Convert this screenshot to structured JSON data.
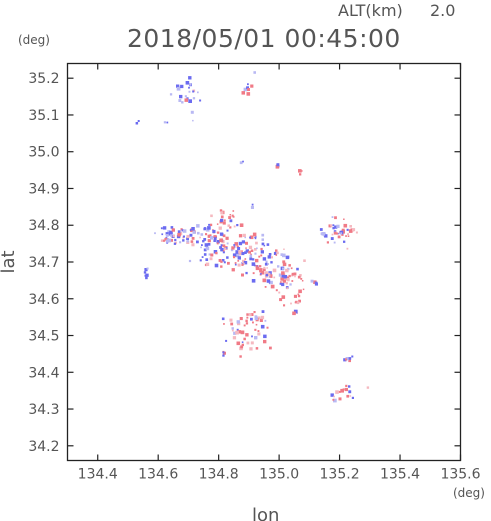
{
  "header": {
    "alt_label": "ALT(km)",
    "alt_value": "2.0",
    "timestamp": "2018/05/01 00:45:00"
  },
  "chart_data": {
    "type": "scatter",
    "title": "2018/05/01 00:45:00",
    "xlabel": "lon",
    "ylabel": "lat",
    "x_unit": "(deg)",
    "y_unit": "(deg)",
    "xlim": [
      134.3,
      135.6
    ],
    "ylim": [
      34.16,
      35.24
    ],
    "x_ticks": [
      {
        "value": 134.4,
        "label": "134.4"
      },
      {
        "value": 134.6,
        "label": "134.6"
      },
      {
        "value": 134.8,
        "label": "134.8"
      },
      {
        "value": 135.0,
        "label": "135.0"
      },
      {
        "value": 135.2,
        "label": "135.2"
      },
      {
        "value": 135.4,
        "label": "135.4"
      },
      {
        "value": 135.6,
        "label": "135.6"
      }
    ],
    "y_ticks": [
      {
        "value": 34.2,
        "label": "34.2"
      },
      {
        "value": 34.3,
        "label": "34.3"
      },
      {
        "value": 34.4,
        "label": "34.4"
      },
      {
        "value": 34.5,
        "label": "34.5"
      },
      {
        "value": 34.6,
        "label": "34.6"
      },
      {
        "value": 34.7,
        "label": "34.7"
      },
      {
        "value": 34.8,
        "label": "34.8"
      },
      {
        "value": 34.9,
        "label": "34.9"
      },
      {
        "value": 35.0,
        "label": "35.0"
      },
      {
        "value": 35.1,
        "label": "35.1"
      },
      {
        "value": 35.2,
        "label": "35.2"
      }
    ],
    "colors": {
      "blue": "#6b6bf0",
      "red": "#f07a86",
      "pale_blue": "#b9b9f3",
      "pale_red": "#f5b9c0",
      "frame": "#222222",
      "text": "#555555"
    },
    "clusters": [
      {
        "lon": 134.7,
        "lat": 35.15,
        "sx": 0.025,
        "sy": 0.03,
        "n": 26,
        "mix": 0.85
      },
      {
        "lon": 134.89,
        "lat": 35.17,
        "sx": 0.01,
        "sy": 0.008,
        "n": 8,
        "mix": 0.3
      },
      {
        "lon": 134.62,
        "lat": 34.77,
        "sx": 0.015,
        "sy": 0.01,
        "n": 12,
        "mix": 0.6
      },
      {
        "lon": 134.66,
        "lat": 34.77,
        "sx": 0.02,
        "sy": 0.012,
        "n": 22,
        "mix": 0.6
      },
      {
        "lon": 134.7,
        "lat": 34.77,
        "sx": 0.025,
        "sy": 0.015,
        "n": 25,
        "mix": 0.55
      },
      {
        "lon": 134.83,
        "lat": 34.82,
        "sx": 0.02,
        "sy": 0.012,
        "n": 16,
        "mix": 0.25
      },
      {
        "lon": 134.8,
        "lat": 34.75,
        "sx": 0.04,
        "sy": 0.035,
        "n": 70,
        "mix": 0.55
      },
      {
        "lon": 134.9,
        "lat": 34.72,
        "sx": 0.045,
        "sy": 0.035,
        "n": 75,
        "mix": 0.5
      },
      {
        "lon": 134.97,
        "lat": 34.67,
        "sx": 0.03,
        "sy": 0.03,
        "n": 45,
        "mix": 0.45
      },
      {
        "lon": 135.03,
        "lat": 34.65,
        "sx": 0.025,
        "sy": 0.035,
        "n": 40,
        "mix": 0.35
      },
      {
        "lon": 135.05,
        "lat": 34.58,
        "sx": 0.012,
        "sy": 0.012,
        "n": 10,
        "mix": 0.3
      },
      {
        "lon": 135.12,
        "lat": 34.64,
        "sx": 0.008,
        "sy": 0.006,
        "n": 4,
        "mix": 0.6
      },
      {
        "lon": 135.16,
        "lat": 34.78,
        "sx": 0.012,
        "sy": 0.01,
        "n": 10,
        "mix": 0.75
      },
      {
        "lon": 135.21,
        "lat": 34.78,
        "sx": 0.025,
        "sy": 0.02,
        "n": 35,
        "mix": 0.25
      },
      {
        "lon": 134.56,
        "lat": 34.67,
        "sx": 0.005,
        "sy": 0.006,
        "n": 6,
        "mix": 0.7
      },
      {
        "lon": 134.89,
        "lat": 34.51,
        "sx": 0.04,
        "sy": 0.025,
        "n": 50,
        "mix": 0.3
      },
      {
        "lon": 134.92,
        "lat": 34.55,
        "sx": 0.015,
        "sy": 0.01,
        "n": 10,
        "mix": 0.3
      },
      {
        "lon": 135.0,
        "lat": 34.96,
        "sx": 0.006,
        "sy": 0.004,
        "n": 4,
        "mix": 0.8
      },
      {
        "lon": 135.07,
        "lat": 34.95,
        "sx": 0.008,
        "sy": 0.005,
        "n": 4,
        "mix": 0.2
      },
      {
        "lon": 134.88,
        "lat": 34.97,
        "sx": 0.004,
        "sy": 0.003,
        "n": 2,
        "mix": 0.9
      },
      {
        "lon": 134.82,
        "lat": 34.45,
        "sx": 0.006,
        "sy": 0.005,
        "n": 4,
        "mix": 0.6
      },
      {
        "lon": 135.23,
        "lat": 34.44,
        "sx": 0.006,
        "sy": 0.005,
        "n": 6,
        "mix": 0.4
      },
      {
        "lon": 135.21,
        "lat": 34.34,
        "sx": 0.014,
        "sy": 0.012,
        "n": 16,
        "mix": 0.3
      },
      {
        "lon": 134.93,
        "lat": 34.77,
        "sx": 0.008,
        "sy": 0.006,
        "n": 6,
        "mix": 0.6
      },
      {
        "lon": 134.76,
        "lat": 34.79,
        "sx": 0.008,
        "sy": 0.006,
        "n": 6,
        "mix": 0.8
      },
      {
        "lon": 134.53,
        "lat": 35.08,
        "sx": 0.004,
        "sy": 0.003,
        "n": 2,
        "mix": 0.9
      },
      {
        "lon": 134.63,
        "lat": 35.08,
        "sx": 0.004,
        "sy": 0.003,
        "n": 2,
        "mix": 0.9
      },
      {
        "lon": 134.92,
        "lat": 35.22,
        "sx": 0.003,
        "sy": 0.003,
        "n": 1,
        "mix": 0.9
      },
      {
        "lon": 134.91,
        "lat": 34.85,
        "sx": 0.003,
        "sy": 0.003,
        "n": 2,
        "mix": 0.9
      },
      {
        "lon": 135.3,
        "lat": 34.36,
        "sx": 0.003,
        "sy": 0.003,
        "n": 1,
        "mix": 0.2
      }
    ]
  }
}
